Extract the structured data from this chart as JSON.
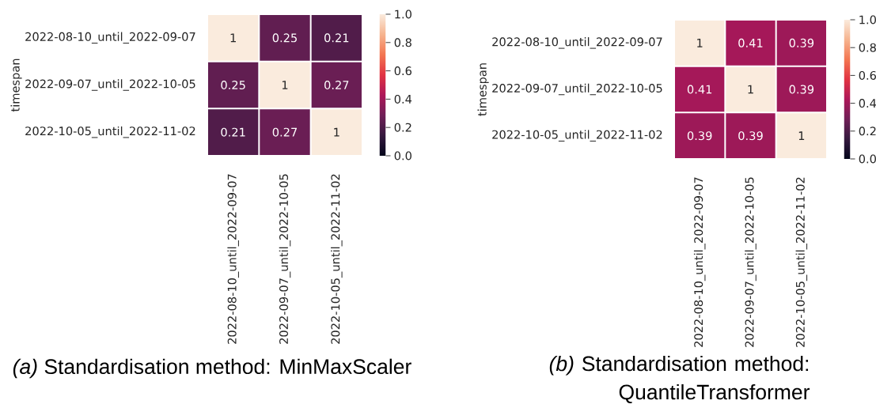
{
  "chart_data": [
    {
      "type": "heatmap",
      "categories": [
        "2022-08-10_until_2022-09-07",
        "2022-09-07_until_2022-10-05",
        "2022-10-05_until_2022-11-02"
      ],
      "y_categories": [
        "2022-08-10_until_2022-09-07",
        "2022-09-07_until_2022-10-05",
        "2022-10-05_until_2022-11-02"
      ],
      "ylabel": "timespan",
      "cells": [
        [
          1,
          0.25,
          0.21
        ],
        [
          0.25,
          1,
          0.27
        ],
        [
          0.21,
          0.27,
          1
        ]
      ],
      "data_labels": true,
      "clim": [
        0,
        1
      ],
      "cticks": [
        {
          "value": 0,
          "label": "0.0"
        },
        {
          "value": 0.2,
          "label": "0.2"
        },
        {
          "value": 0.4,
          "label": "0.4"
        },
        {
          "value": 0.6,
          "label": "0.6"
        },
        {
          "value": 0.8,
          "label": "0.8"
        },
        {
          "value": 1,
          "label": "1.0"
        }
      ],
      "annotations": [
        "*(a)* Standardisation method: MinMaxScaler"
      ]
    },
    {
      "type": "heatmap",
      "categories": [
        "2022-08-10_until_2022-09-07",
        "2022-09-07_until_2022-10-05",
        "2022-10-05_until_2022-11-02"
      ],
      "y_categories": [
        "2022-08-10_until_2022-09-07",
        "2022-09-07_until_2022-10-05",
        "2022-10-05_until_2022-11-02"
      ],
      "ylabel": "timespan",
      "cells": [
        [
          1,
          0.41,
          0.39
        ],
        [
          0.41,
          1,
          0.39
        ],
        [
          0.39,
          0.39,
          1
        ]
      ],
      "data_labels": true,
      "clim": [
        0,
        1
      ],
      "cticks": [
        {
          "value": 0,
          "label": "0.0"
        },
        {
          "value": 0.2,
          "label": "0.2"
        },
        {
          "value": 0.4,
          "label": "0.4"
        },
        {
          "value": 0.6,
          "label": "0.6"
        },
        {
          "value": 0.8,
          "label": "0.8"
        },
        {
          "value": 1,
          "label": "1.0"
        }
      ],
      "annotations": [
        "*(b)* Standardisation method: QuantileTransformer"
      ]
    }
  ]
}
